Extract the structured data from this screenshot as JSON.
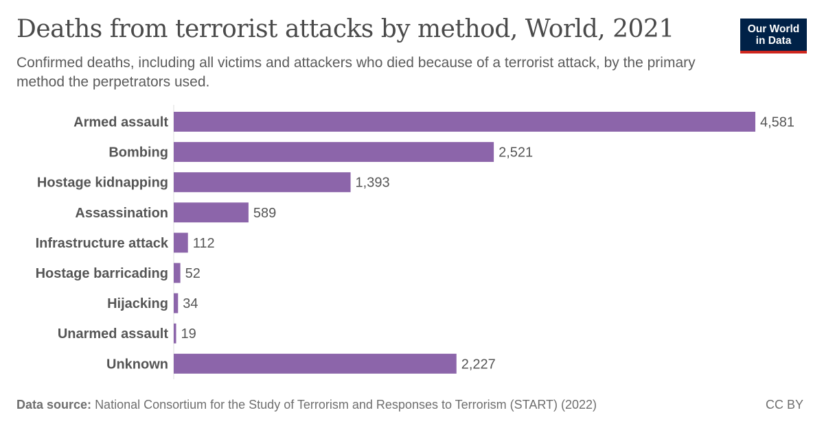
{
  "header": {
    "title": "Deaths from terrorist attacks by method, World, 2021",
    "subtitle": "Confirmed deaths, including all victims and attackers who died because of a terrorist attack, by the primary method the perpetrators used."
  },
  "logo": {
    "line1": "Our World",
    "line2": "in Data"
  },
  "footer": {
    "source_label": "Data source:",
    "source_text": "National Consortium for the Study of Terrorism and Responses to Terrorism (START) (2022)",
    "license": "CC BY"
  },
  "chart_data": {
    "type": "bar",
    "orientation": "horizontal",
    "title": "Deaths from terrorist attacks by method, World, 2021",
    "categories": [
      "Armed assault",
      "Bombing",
      "Hostage kidnapping",
      "Assassination",
      "Infrastructure attack",
      "Hostage barricading",
      "Hijacking",
      "Unarmed assault",
      "Unknown"
    ],
    "values": [
      4581,
      2521,
      1393,
      589,
      112,
      52,
      34,
      19,
      2227
    ],
    "value_labels": [
      "4,581",
      "2,521",
      "1,393",
      "589",
      "112",
      "52",
      "34",
      "19",
      "2,227"
    ],
    "xlim": [
      0,
      4581
    ],
    "bar_color": "#8c65aa",
    "grid": false
  }
}
